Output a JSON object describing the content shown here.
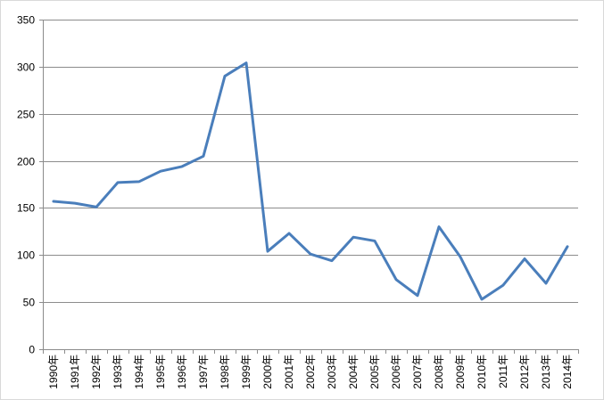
{
  "chart_data": {
    "type": "line",
    "title": "",
    "xlabel": "",
    "ylabel": "",
    "ylim": [
      0,
      350
    ],
    "yticks": [
      0,
      50,
      100,
      150,
      200,
      250,
      300,
      350
    ],
    "grid": "horizontal",
    "legend": "none",
    "categories": [
      "1990年",
      "1991年",
      "1992年",
      "1993年",
      "1994年",
      "1995年",
      "1996年",
      "1997年",
      "1998年",
      "1999年",
      "2000年",
      "2001年",
      "2002年",
      "2003年",
      "2004年",
      "2005年",
      "2006年",
      "2007年",
      "2008年",
      "2009年",
      "2010年",
      "2011年",
      "2012年",
      "2013年",
      "2014年"
    ],
    "series": [
      {
        "color": "#4a7ebb",
        "values": [
          157,
          155,
          151,
          177,
          178,
          189,
          194,
          205,
          290,
          304,
          104,
          123,
          101,
          94,
          119,
          115,
          74,
          57,
          130,
          98,
          53,
          68,
          96,
          70,
          109
        ]
      }
    ],
    "colors": {
      "grid": "#8c8c8c",
      "axis": "#8c8c8c",
      "line": "#4a7ebb"
    }
  }
}
